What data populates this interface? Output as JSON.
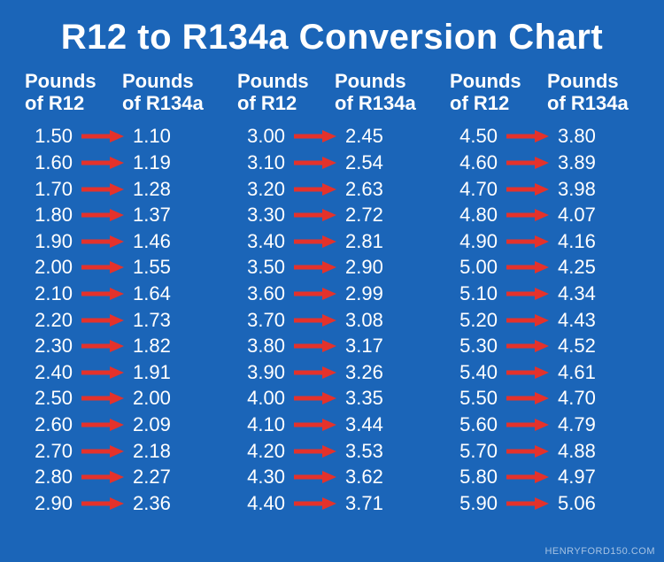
{
  "type": "table",
  "title": "R12 to R134a Conversion Chart",
  "background_color": "#1b65b8",
  "text_color": "#ffffff",
  "arrow_color": "#e4322b",
  "title_fontsize": 40,
  "header_fontsize": 22,
  "value_fontsize": 22,
  "arrow_width": 48,
  "arrow_height": 14,
  "column_header_left": "Pounds\nof R12",
  "column_header_right": "Pounds\nof R134a",
  "watermark": "HENRYFORD150.COM",
  "columns": [
    {
      "rows": [
        {
          "r12": "1.50",
          "r134a": "1.10"
        },
        {
          "r12": "1.60",
          "r134a": "1.19"
        },
        {
          "r12": "1.70",
          "r134a": "1.28"
        },
        {
          "r12": "1.80",
          "r134a": "1.37"
        },
        {
          "r12": "1.90",
          "r134a": "1.46"
        },
        {
          "r12": "2.00",
          "r134a": "1.55"
        },
        {
          "r12": "2.10",
          "r134a": "1.64"
        },
        {
          "r12": "2.20",
          "r134a": "1.73"
        },
        {
          "r12": "2.30",
          "r134a": "1.82"
        },
        {
          "r12": "2.40",
          "r134a": "1.91"
        },
        {
          "r12": "2.50",
          "r134a": "2.00"
        },
        {
          "r12": "2.60",
          "r134a": "2.09"
        },
        {
          "r12": "2.70",
          "r134a": "2.18"
        },
        {
          "r12": "2.80",
          "r134a": "2.27"
        },
        {
          "r12": "2.90",
          "r134a": "2.36"
        }
      ]
    },
    {
      "rows": [
        {
          "r12": "3.00",
          "r134a": "2.45"
        },
        {
          "r12": "3.10",
          "r134a": "2.54"
        },
        {
          "r12": "3.20",
          "r134a": "2.63"
        },
        {
          "r12": "3.30",
          "r134a": "2.72"
        },
        {
          "r12": "3.40",
          "r134a": "2.81"
        },
        {
          "r12": "3.50",
          "r134a": "2.90"
        },
        {
          "r12": "3.60",
          "r134a": "2.99"
        },
        {
          "r12": "3.70",
          "r134a": "3.08"
        },
        {
          "r12": "3.80",
          "r134a": "3.17"
        },
        {
          "r12": "3.90",
          "r134a": "3.26"
        },
        {
          "r12": "4.00",
          "r134a": "3.35"
        },
        {
          "r12": "4.10",
          "r134a": "3.44"
        },
        {
          "r12": "4.20",
          "r134a": "3.53"
        },
        {
          "r12": "4.30",
          "r134a": "3.62"
        },
        {
          "r12": "4.40",
          "r134a": "3.71"
        }
      ]
    },
    {
      "rows": [
        {
          "r12": "4.50",
          "r134a": "3.80"
        },
        {
          "r12": "4.60",
          "r134a": "3.89"
        },
        {
          "r12": "4.70",
          "r134a": "3.98"
        },
        {
          "r12": "4.80",
          "r134a": "4.07"
        },
        {
          "r12": "4.90",
          "r134a": "4.16"
        },
        {
          "r12": "5.00",
          "r134a": "4.25"
        },
        {
          "r12": "5.10",
          "r134a": "4.34"
        },
        {
          "r12": "5.20",
          "r134a": "4.43"
        },
        {
          "r12": "5.30",
          "r134a": "4.52"
        },
        {
          "r12": "5.40",
          "r134a": "4.61"
        },
        {
          "r12": "5.50",
          "r134a": "4.70"
        },
        {
          "r12": "5.60",
          "r134a": "4.79"
        },
        {
          "r12": "5.70",
          "r134a": "4.88"
        },
        {
          "r12": "5.80",
          "r134a": "4.97"
        },
        {
          "r12": "5.90",
          "r134a": "5.06"
        }
      ]
    }
  ]
}
